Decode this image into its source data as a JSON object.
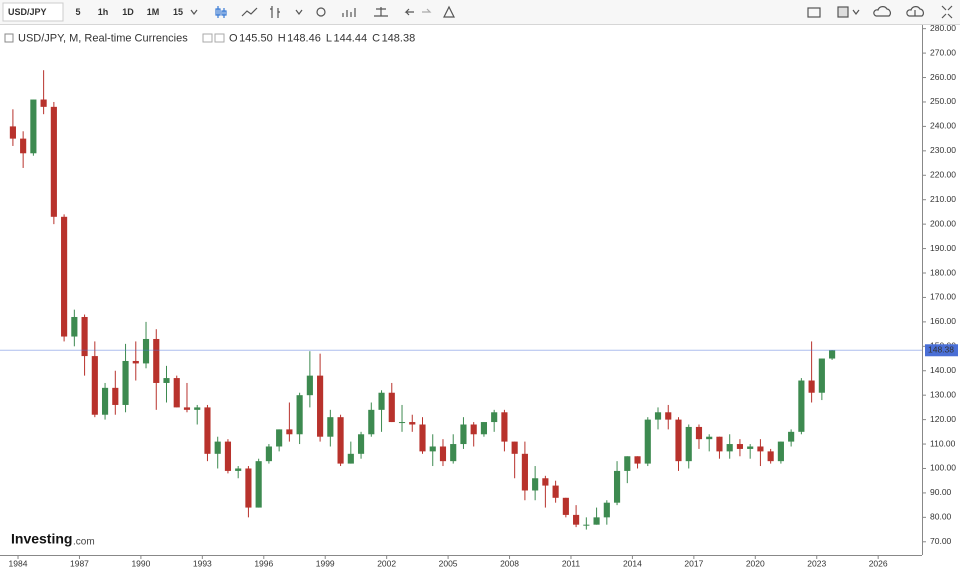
{
  "toolbar": {
    "symbol": "USD/JPY",
    "intervals": [
      "5",
      "1h",
      "1D",
      "1M",
      "15"
    ],
    "active_interval_index": 3
  },
  "legend": {
    "title": "USD/JPY, M, Real-time Currencies",
    "items": [
      {
        "key": "O",
        "value": "145.50"
      },
      {
        "key": "H",
        "value": "148.46"
      },
      {
        "key": "L",
        "value": "144.44"
      },
      {
        "key": "C",
        "value": "148.38"
      }
    ]
  },
  "brand": {
    "name": "Investing",
    "suffix": ".com"
  },
  "chart_data": {
    "type": "candlestick",
    "x": [
      1983.5,
      1984,
      1984.5,
      1985,
      1985.5,
      1986,
      1986.5,
      1987,
      1987.5,
      1988,
      1988.5,
      1989,
      1989.5,
      1990,
      1990.5,
      1991,
      1991.5,
      1992,
      1992.5,
      1993,
      1993.5,
      1994,
      1994.5,
      1995,
      1995.5,
      1996,
      1996.5,
      1997,
      1997.5,
      1998,
      1998.5,
      1999,
      1999.5,
      2000,
      2000.5,
      2001,
      2001.5,
      2002,
      2002.5,
      2003,
      2003.5,
      2004,
      2004.5,
      2005,
      2005.5,
      2006,
      2006.5,
      2007,
      2007.5,
      2008,
      2008.5,
      2009,
      2009.5,
      2010,
      2010.5,
      2011,
      2011.5,
      2012,
      2012.5,
      2013,
      2013.5,
      2014,
      2014.5,
      2015,
      2015.5,
      2016,
      2016.5,
      2017,
      2017.5,
      2018,
      2018.5,
      2019,
      2019.5,
      2020,
      2020.5,
      2021,
      2021.5,
      2022,
      2022.5,
      2023,
      2023.5
    ],
    "open": [
      240,
      235,
      229,
      251,
      248,
      203,
      154,
      162,
      146,
      122,
      133,
      126,
      144,
      143,
      153,
      135,
      137,
      125,
      124,
      125,
      106,
      111,
      99,
      100,
      84,
      103,
      109,
      116,
      114,
      130,
      138,
      113,
      121,
      102,
      106,
      114,
      124,
      131,
      119,
      119,
      118,
      107,
      109,
      103,
      110,
      118,
      114,
      119,
      123,
      111,
      106,
      91,
      96,
      93,
      88,
      81,
      77,
      77,
      80,
      86,
      99,
      105,
      102,
      120,
      123,
      120,
      103,
      117,
      112,
      113,
      107,
      110,
      108,
      109,
      107,
      103,
      111,
      115,
      136,
      131,
      145
    ],
    "high": [
      247,
      238,
      251,
      263,
      250,
      204,
      165,
      163,
      152,
      135,
      140,
      151,
      152,
      160,
      157,
      142,
      138,
      135,
      126,
      126,
      113,
      112,
      101,
      101,
      104,
      110,
      116,
      127,
      131,
      148,
      147,
      124,
      122,
      111,
      115,
      127,
      132,
      135,
      126,
      122,
      121,
      114,
      112,
      114,
      121,
      119,
      119,
      124,
      124,
      111,
      111,
      101,
      97,
      95,
      88,
      85,
      80,
      84,
      87,
      103,
      105,
      105,
      121,
      125,
      126,
      121,
      118,
      118,
      114,
      113,
      114,
      112,
      110,
      112,
      108,
      111,
      116,
      137,
      152,
      145,
      148.46
    ],
    "low": [
      232,
      223,
      228,
      245,
      200,
      152,
      150,
      138,
      121,
      120,
      122,
      123,
      136,
      141,
      124,
      127,
      125,
      123,
      118,
      103,
      100,
      98,
      96,
      80,
      84,
      102,
      107,
      111,
      110,
      125,
      111,
      109,
      101,
      102,
      104,
      113,
      115,
      119,
      115,
      115,
      106,
      101,
      101,
      102,
      108,
      109,
      113,
      115,
      107,
      96,
      87,
      87,
      84,
      86,
      80,
      76,
      75,
      77,
      77,
      85,
      94,
      100,
      101,
      116,
      116,
      99,
      100,
      108,
      107,
      104,
      104,
      105,
      104,
      101,
      102,
      102,
      109,
      114,
      127,
      128,
      144.44
    ],
    "close": [
      235,
      229,
      251,
      248,
      203,
      154,
      162,
      146,
      122,
      133,
      126,
      144,
      143,
      153,
      135,
      137,
      125,
      124,
      125,
      106,
      111,
      99,
      100,
      84,
      103,
      109,
      116,
      114,
      130,
      138,
      113,
      121,
      102,
      106,
      114,
      124,
      131,
      119,
      119,
      118,
      107,
      109,
      103,
      110,
      118,
      114,
      119,
      123,
      111,
      106,
      91,
      96,
      93,
      88,
      81,
      77,
      77,
      80,
      86,
      99,
      105,
      102,
      120,
      123,
      120,
      103,
      117,
      112,
      113,
      107,
      110,
      108,
      109,
      107,
      103,
      111,
      115,
      136,
      131,
      145,
      148.38
    ],
    "up_color": "#3d8a50",
    "down_color": "#b8322c",
    "last_price": {
      "value": 148.38,
      "label": "148.38"
    },
    "last_price_color": "#4a6fd6",
    "xlim": [
      1983.12,
      2028.14
    ],
    "xticks": [
      1984,
      1987,
      1990,
      1993,
      1996,
      1999,
      2002,
      2005,
      2008,
      2011,
      2014,
      2017,
      2020,
      2023,
      2026
    ],
    "ylim": [
      65,
      281.5
    ],
    "yticks": [
      {
        "value": 70,
        "label": "70.00"
      },
      {
        "value": 80,
        "label": "80.00"
      },
      {
        "value": 90,
        "label": "90.00"
      },
      {
        "value": 100,
        "label": "100.00"
      },
      {
        "value": 110,
        "label": "110.00"
      },
      {
        "value": 120,
        "label": "120.00"
      },
      {
        "value": 130,
        "label": "130.00"
      },
      {
        "value": 140,
        "label": "140.00"
      },
      {
        "value": 150,
        "label": "150.00"
      },
      {
        "value": 160,
        "label": "160.00"
      },
      {
        "value": 170,
        "label": "170.00"
      },
      {
        "value": 180,
        "label": "180.00"
      },
      {
        "value": 190,
        "label": "190.00"
      },
      {
        "value": 200,
        "label": "200.00"
      },
      {
        "value": 210,
        "label": "210.00"
      },
      {
        "value": 220,
        "label": "220.00"
      },
      {
        "value": 230,
        "label": "230.00"
      },
      {
        "value": 240,
        "label": "240.00"
      },
      {
        "value": 250,
        "label": "250.00"
      },
      {
        "value": 260,
        "label": "260.00"
      },
      {
        "value": 270,
        "label": "270.00"
      },
      {
        "value": 280,
        "label": "280.00"
      }
    ]
  }
}
